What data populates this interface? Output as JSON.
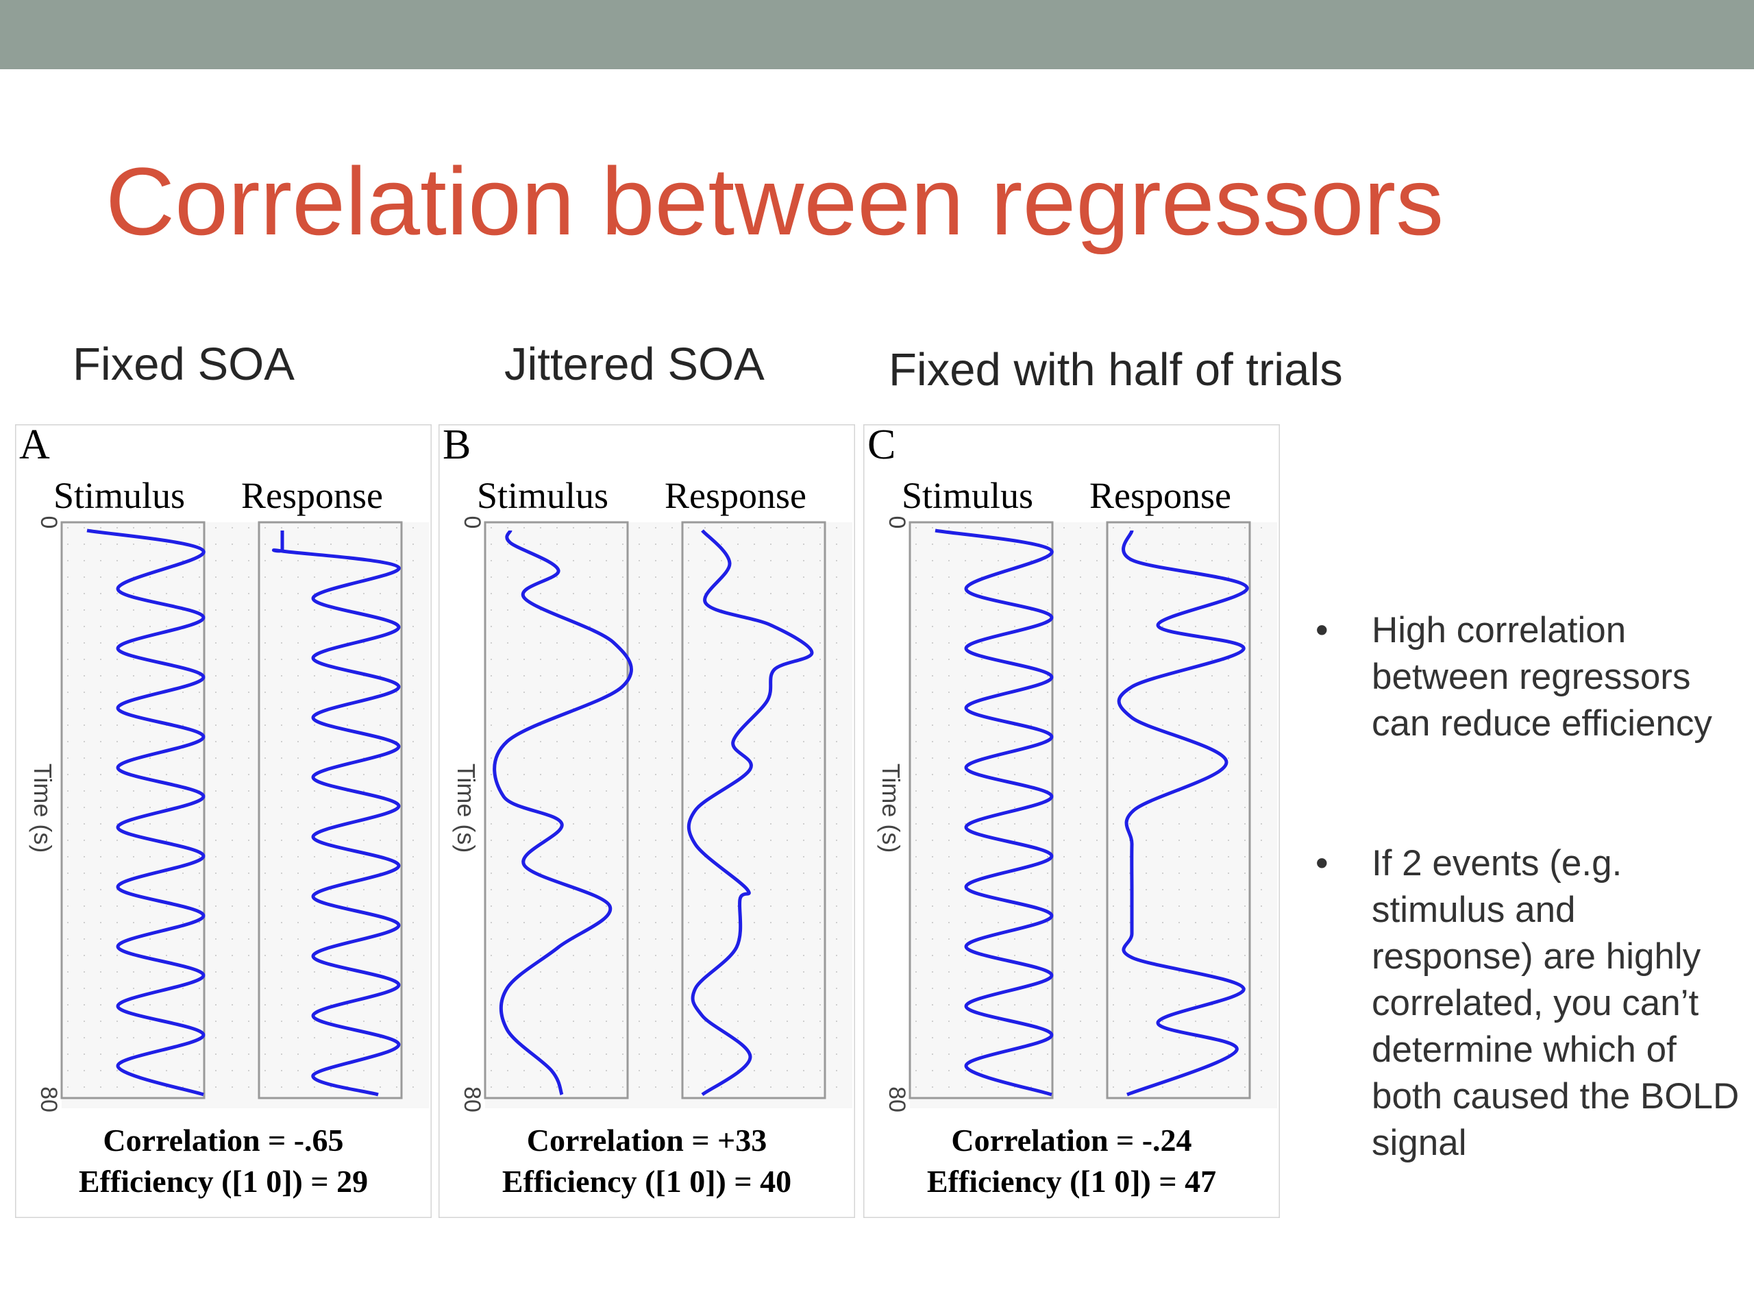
{
  "slide": {
    "title": "Correlation between regressors",
    "title_color": "#d4513a",
    "bar_color": "#919f97"
  },
  "panels": [
    {
      "heading": "Fixed SOA",
      "letter": "A",
      "stimulus_label": "Stimulus",
      "response_label": "Response",
      "axis_label": "Time (s)",
      "axis_start": "0",
      "axis_end": "80",
      "correlation_text": "Correlation = -.65",
      "efficiency_text": "Efficiency ([1 0]) = 29"
    },
    {
      "heading": "Jittered SOA",
      "letter": "B",
      "stimulus_label": "Stimulus",
      "response_label": "Response",
      "axis_label": "Time (s)",
      "axis_start": "0",
      "axis_end": "80",
      "correlation_text": "Correlation = +33",
      "efficiency_text": "Efficiency ([1 0]) = 40"
    },
    {
      "heading": "Fixed with half of trials",
      "letter": "C",
      "stimulus_label": "Stimulus",
      "response_label": "Response",
      "axis_label": "Time (s)",
      "axis_start": "0",
      "axis_end": "80",
      "correlation_text": "Correlation = -.24",
      "efficiency_text": "Efficiency ([1 0]) = 47"
    }
  ],
  "bullets": [
    {
      "symbol": "•",
      "text": "High correlation between regressors can reduce efficiency"
    },
    {
      "symbol": "•",
      "text": "If 2 events (e.g. stimulus and response) are highly correlated, you can’t determine which of both caused the BOLD signal"
    }
  ],
  "waveform_color": "#1f1fe6"
}
